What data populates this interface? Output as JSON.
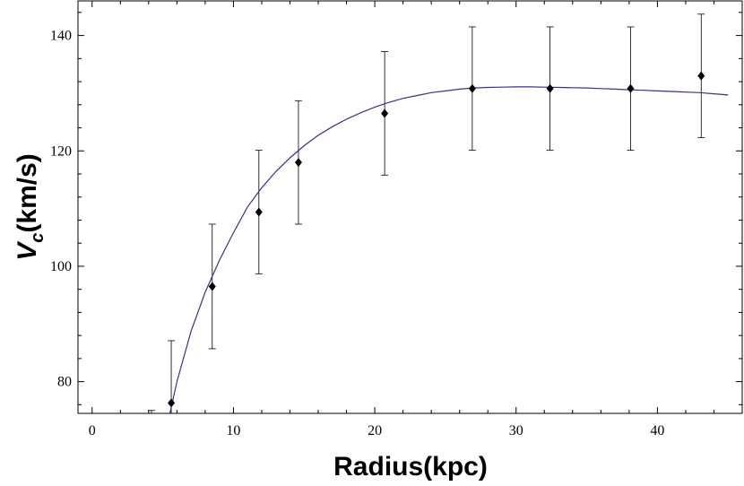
{
  "chart_data": {
    "type": "scatter",
    "title": "",
    "xlabel": "Radius(kpc)",
    "ylabel_main": "V",
    "ylabel_sub": "c",
    "ylabel_rest": "(km/s)",
    "xlim": [
      -1,
      46
    ],
    "ylim": [
      74.5,
      146
    ],
    "x_ticks": [
      0,
      10,
      20,
      30,
      40
    ],
    "y_ticks": [
      80,
      100,
      120,
      140
    ],
    "grid": false,
    "colors": {
      "fit_line": "#3a2f8f",
      "points": "#000000",
      "frame": "#000000"
    },
    "series": [
      {
        "kind": "points_with_error_bars",
        "x": [
          4.2,
          5.6,
          8.5,
          11.8,
          14.6,
          20.7,
          26.9,
          32.4,
          38.1,
          43.1
        ],
        "y": [
          74.0,
          76.3,
          96.5,
          109.4,
          118.0,
          126.5,
          130.8,
          130.8,
          130.8,
          133.0
        ],
        "yerr": [
          1.0,
          10.8,
          10.8,
          10.7,
          10.7,
          10.7,
          10.7,
          10.7,
          10.7,
          10.7
        ]
      },
      {
        "kind": "fit_curve",
        "x": [
          5.5,
          6,
          7,
          8,
          9,
          10,
          11,
          12,
          13,
          14,
          15,
          16,
          17,
          18,
          19,
          20,
          21,
          22,
          23,
          24,
          25,
          26,
          27,
          28,
          29,
          30,
          31,
          32,
          33,
          34,
          35,
          36,
          37,
          38,
          39,
          40,
          41,
          42,
          43,
          44,
          45
        ],
        "y": [
          74.5,
          80.0,
          88.7,
          95.5,
          101.0,
          105.8,
          110.3,
          113.6,
          116.4,
          118.8,
          120.9,
          122.7,
          124.2,
          125.5,
          126.6,
          127.6,
          128.4,
          129.1,
          129.6,
          130.1,
          130.4,
          130.7,
          130.9,
          131.0,
          131.05,
          131.1,
          131.1,
          131.05,
          131.0,
          130.95,
          130.9,
          130.8,
          130.7,
          130.6,
          130.5,
          130.4,
          130.3,
          130.2,
          130.1,
          129.9,
          129.7
        ]
      }
    ]
  }
}
